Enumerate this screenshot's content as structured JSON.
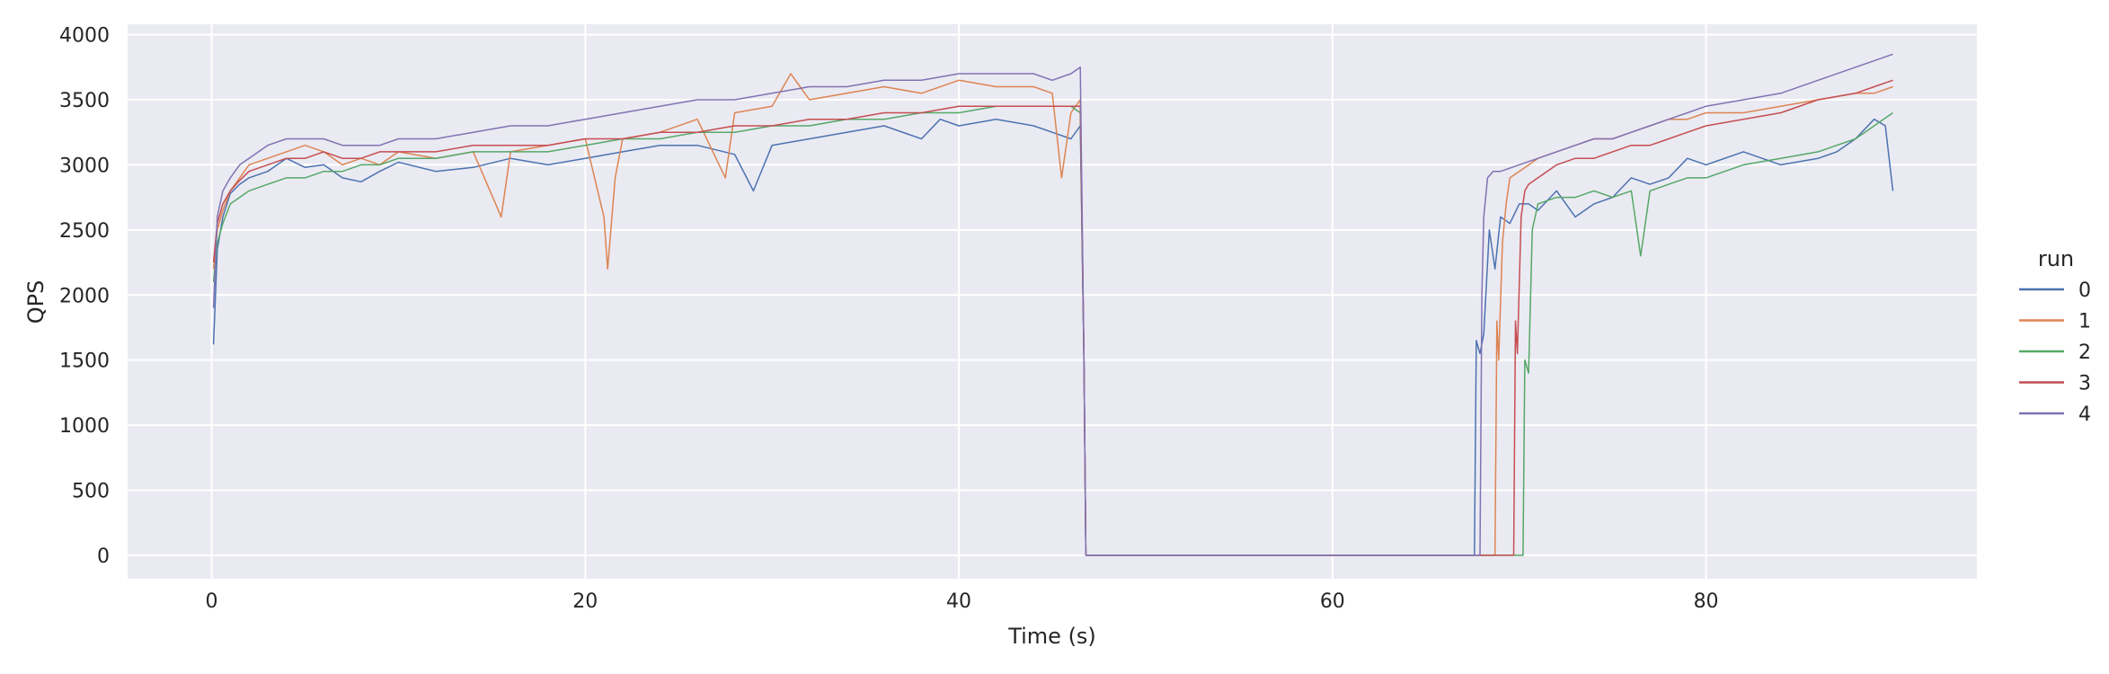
{
  "chart_data": {
    "type": "line",
    "title": "",
    "xlabel": "Time (s)",
    "ylabel": "QPS",
    "xlim": [
      -4.5,
      94.5
    ],
    "ylim": [
      -180,
      4080
    ],
    "xticks": [
      0,
      20,
      40,
      60,
      80
    ],
    "yticks": [
      0,
      500,
      1000,
      1500,
      2000,
      2500,
      3000,
      3500,
      4000
    ],
    "grid": true,
    "legend": {
      "title": "run",
      "placement": "right"
    },
    "background": "#EAEAF2",
    "series": [
      {
        "name": "0",
        "color": "#4C72B0",
        "x": [
          0.1,
          0.3,
          0.6,
          1,
          1.5,
          2,
          3,
          4,
          5,
          6,
          7,
          8,
          9,
          10,
          12,
          14,
          16,
          18,
          20,
          22,
          24,
          26,
          28,
          29,
          30,
          32,
          34,
          36,
          38,
          39,
          40,
          42,
          44,
          45,
          46,
          46.5,
          46.7,
          46.8,
          50,
          60,
          67.6,
          67.7,
          67.9,
          68.1,
          68.4,
          68.7,
          69,
          69.5,
          70,
          70.5,
          71,
          72,
          73,
          74,
          75,
          76,
          77,
          78,
          79,
          80,
          82,
          84,
          86,
          87,
          88,
          89,
          89.6,
          90
        ],
        "y": [
          1620,
          2350,
          2600,
          2780,
          2850,
          2900,
          2950,
          3050,
          2980,
          3000,
          2900,
          2870,
          2950,
          3020,
          2950,
          2980,
          3050,
          3000,
          3050,
          3100,
          3150,
          3150,
          3080,
          2800,
          3150,
          3200,
          3250,
          3300,
          3200,
          3350,
          3300,
          3350,
          3300,
          3250,
          3200,
          3300,
          1500,
          0,
          0,
          0,
          0,
          1650,
          1550,
          1700,
          2500,
          2200,
          2600,
          2550,
          2700,
          2700,
          2650,
          2800,
          2600,
          2700,
          2750,
          2900,
          2850,
          2900,
          3050,
          3000,
          3100,
          3000,
          3050,
          3100,
          3200,
          3350,
          3300,
          2800
        ]
      },
      {
        "name": "1",
        "color": "#DD8452",
        "x": [
          0.1,
          0.3,
          0.6,
          1,
          1.5,
          2,
          3,
          4,
          5,
          6,
          7,
          8,
          9,
          10,
          12,
          14,
          15.5,
          16,
          18,
          20,
          21,
          21.2,
          21.6,
          22,
          24,
          26,
          27.5,
          28,
          30,
          31,
          32,
          34,
          36,
          38,
          40,
          42,
          44,
          45,
          45.5,
          46,
          46.5,
          46.7,
          46.8,
          50,
          60,
          68.7,
          68.8,
          68.9,
          69.1,
          69.3,
          69.5,
          70,
          71,
          72,
          73,
          74,
          75,
          76,
          77,
          78,
          79,
          80,
          82,
          84,
          86,
          88,
          89,
          90
        ],
        "y": [
          2200,
          2500,
          2650,
          2800,
          2900,
          3000,
          3050,
          3100,
          3150,
          3100,
          3000,
          3050,
          3000,
          3100,
          3050,
          3100,
          2600,
          3100,
          3150,
          3200,
          2600,
          2200,
          2900,
          3200,
          3250,
          3350,
          2900,
          3400,
          3450,
          3700,
          3500,
          3550,
          3600,
          3550,
          3650,
          3600,
          3600,
          3550,
          2900,
          3400,
          3500,
          1500,
          0,
          0,
          0,
          0,
          1800,
          1500,
          2400,
          2700,
          2900,
          2950,
          3050,
          3100,
          3150,
          3200,
          3200,
          3250,
          3300,
          3350,
          3350,
          3400,
          3400,
          3450,
          3500,
          3550,
          3550,
          3600
        ]
      },
      {
        "name": "2",
        "color": "#55A868",
        "x": [
          0.1,
          0.3,
          0.6,
          1,
          1.5,
          2,
          3,
          4,
          5,
          6,
          7,
          8,
          9,
          10,
          12,
          14,
          16,
          18,
          20,
          22,
          24,
          26,
          28,
          30,
          32,
          34,
          36,
          38,
          40,
          42,
          44,
          46,
          46.5,
          46.7,
          46.8,
          50,
          60,
          70.2,
          70.3,
          70.5,
          70.7,
          71,
          72,
          73,
          74,
          75,
          76,
          76.5,
          77,
          78,
          79,
          80,
          82,
          84,
          86,
          88,
          89,
          90
        ],
        "y": [
          2100,
          2400,
          2550,
          2700,
          2750,
          2800,
          2850,
          2900,
          2900,
          2950,
          2950,
          3000,
          3000,
          3050,
          3050,
          3100,
          3100,
          3100,
          3150,
          3200,
          3200,
          3250,
          3250,
          3300,
          3300,
          3350,
          3350,
          3400,
          3400,
          3450,
          3450,
          3450,
          3400,
          1500,
          0,
          0,
          0,
          0,
          1500,
          1400,
          2500,
          2700,
          2750,
          2750,
          2800,
          2750,
          2800,
          2300,
          2800,
          2850,
          2900,
          2900,
          3000,
          3050,
          3100,
          3200,
          3300,
          3400
        ]
      },
      {
        "name": "3",
        "color": "#C44E52",
        "x": [
          0.1,
          0.3,
          0.6,
          1,
          1.5,
          2,
          3,
          4,
          5,
          6,
          7,
          8,
          9,
          10,
          12,
          14,
          16,
          18,
          20,
          22,
          24,
          26,
          28,
          30,
          32,
          34,
          36,
          38,
          40,
          42,
          44,
          46,
          46.5,
          46.7,
          46.8,
          50,
          60,
          69.7,
          69.8,
          69.9,
          70.1,
          70.3,
          70.5,
          71,
          72,
          73,
          74,
          75,
          76,
          77,
          78,
          79,
          80,
          82,
          84,
          86,
          88,
          89,
          90
        ],
        "y": [
          2250,
          2550,
          2700,
          2800,
          2880,
          2950,
          3000,
          3050,
          3050,
          3100,
          3050,
          3050,
          3100,
          3100,
          3100,
          3150,
          3150,
          3150,
          3200,
          3200,
          3250,
          3250,
          3300,
          3300,
          3350,
          3350,
          3400,
          3400,
          3450,
          3450,
          3450,
          3450,
          3450,
          1500,
          0,
          0,
          0,
          0,
          1800,
          1550,
          2600,
          2800,
          2850,
          2900,
          3000,
          3050,
          3050,
          3100,
          3150,
          3150,
          3200,
          3250,
          3300,
          3350,
          3400,
          3500,
          3550,
          3600,
          3650
        ]
      },
      {
        "name": "4",
        "color": "#8172B3",
        "x": [
          0.1,
          0.3,
          0.6,
          1,
          1.5,
          2,
          3,
          4,
          5,
          6,
          7,
          8,
          9,
          10,
          12,
          14,
          16,
          18,
          20,
          22,
          24,
          26,
          28,
          30,
          32,
          34,
          36,
          38,
          40,
          42,
          44,
          45,
          46,
          46.5,
          46.7,
          46.8,
          50,
          60,
          67.9,
          68,
          68.1,
          68.3,
          68.6,
          69,
          70,
          71,
          72,
          73,
          74,
          75,
          76,
          77,
          78,
          79,
          80,
          82,
          84,
          86,
          88,
          89,
          90
        ],
        "y": [
          1900,
          2600,
          2800,
          2900,
          3000,
          3050,
          3150,
          3200,
          3200,
          3200,
          3150,
          3150,
          3150,
          3200,
          3200,
          3250,
          3300,
          3300,
          3350,
          3400,
          3450,
          3500,
          3500,
          3550,
          3600,
          3600,
          3650,
          3650,
          3700,
          3700,
          3700,
          3650,
          3700,
          3750,
          1500,
          0,
          0,
          0,
          0,
          2000,
          2600,
          2900,
          2950,
          2950,
          3000,
          3050,
          3100,
          3150,
          3200,
          3200,
          3250,
          3300,
          3350,
          3400,
          3450,
          3500,
          3550,
          3650,
          3750,
          3800,
          3850
        ]
      }
    ]
  }
}
